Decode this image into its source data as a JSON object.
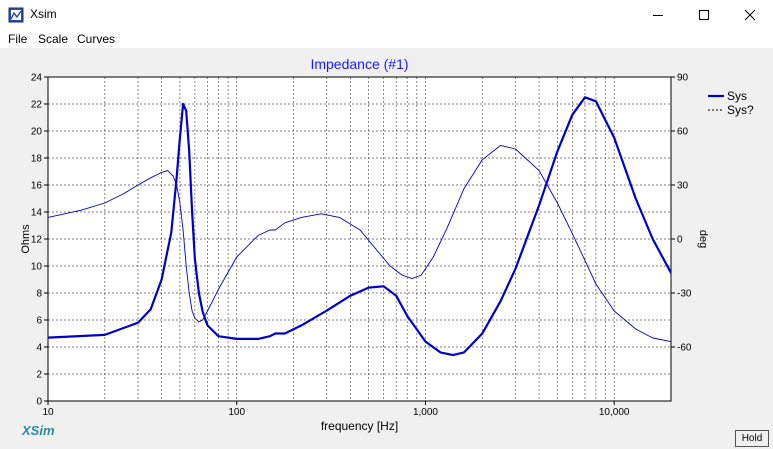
{
  "window": {
    "title": "Xsim"
  },
  "menu": {
    "items": [
      "File",
      "Scale",
      "Curves"
    ]
  },
  "chart_data": {
    "type": "line",
    "title": "Impedance (#1)",
    "xlabel": "frequency [Hz]",
    "ylabel": "Ohms",
    "y2label": "deg",
    "xscale": "log",
    "xlim": [
      10,
      20000
    ],
    "ylim": [
      0,
      24
    ],
    "y2lim": [
      -90,
      90
    ],
    "x_ticks": [
      "10",
      "100",
      "1,000",
      "10,000"
    ],
    "y_ticks": [
      "0",
      "2",
      "4",
      "6",
      "8",
      "10",
      "12",
      "14",
      "16",
      "18",
      "20",
      "22",
      "24"
    ],
    "y2_ticks": [
      "-60",
      "-30",
      "0",
      "30",
      "60",
      "90"
    ],
    "grid": true,
    "legend_position": "top-right",
    "series": [
      {
        "name": "Sys",
        "axis": "left",
        "style": "solid-thick",
        "color": "#0000cc",
        "x": [
          10,
          20,
          30,
          35,
          40,
          45,
          48,
          50,
          52,
          54,
          56,
          58,
          60,
          63,
          66,
          70,
          80,
          100,
          130,
          150,
          160,
          180,
          220,
          300,
          400,
          500,
          600,
          700,
          800,
          1000,
          1200,
          1400,
          1600,
          2000,
          2500,
          3000,
          4000,
          5000,
          6000,
          7000,
          8000,
          10000,
          13000,
          16000,
          20000
        ],
        "y": [
          4.7,
          4.9,
          5.8,
          6.8,
          9.0,
          12.5,
          16.5,
          19.5,
          22.0,
          21.5,
          18.5,
          14.0,
          10.5,
          8.0,
          6.6,
          5.6,
          4.8,
          4.6,
          4.6,
          4.8,
          5.0,
          5.0,
          5.6,
          6.7,
          7.8,
          8.4,
          8.5,
          7.8,
          6.3,
          4.4,
          3.6,
          3.4,
          3.6,
          5.0,
          7.4,
          9.8,
          14.5,
          18.5,
          21.2,
          22.5,
          22.2,
          19.5,
          15.0,
          12.0,
          9.5
        ]
      },
      {
        "name": "Sys?",
        "axis": "right",
        "style": "thin-dashed",
        "color": "#0000cc",
        "x": [
          10,
          15,
          20,
          25,
          30,
          35,
          40,
          43,
          46,
          48,
          50,
          52,
          54,
          56,
          58,
          60,
          63,
          66,
          70,
          80,
          100,
          130,
          150,
          160,
          180,
          220,
          280,
          350,
          450,
          550,
          650,
          750,
          850,
          950,
          1100,
          1300,
          1600,
          2000,
          2500,
          3000,
          4000,
          5000,
          6000,
          7000,
          8000,
          10000,
          13000,
          16000,
          20000
        ],
        "y": [
          12,
          16,
          20,
          25,
          30,
          34,
          37,
          38,
          35,
          30,
          20,
          5,
          -15,
          -30,
          -40,
          -44,
          -46,
          -45,
          -40,
          -28,
          -10,
          2,
          5,
          5,
          9,
          12,
          14,
          12,
          5,
          -6,
          -15,
          -20,
          -22,
          -20,
          -10,
          6,
          28,
          44,
          52,
          50,
          38,
          20,
          3,
          -12,
          -25,
          -40,
          -50,
          -55,
          -57
        ]
      }
    ]
  },
  "branding": {
    "logo_text": "XSim"
  },
  "hold_button": {
    "label": "Hold"
  },
  "colors": {
    "curve": "#0000cc",
    "title": "#1a1aff",
    "logo": "#2a8aa0"
  }
}
